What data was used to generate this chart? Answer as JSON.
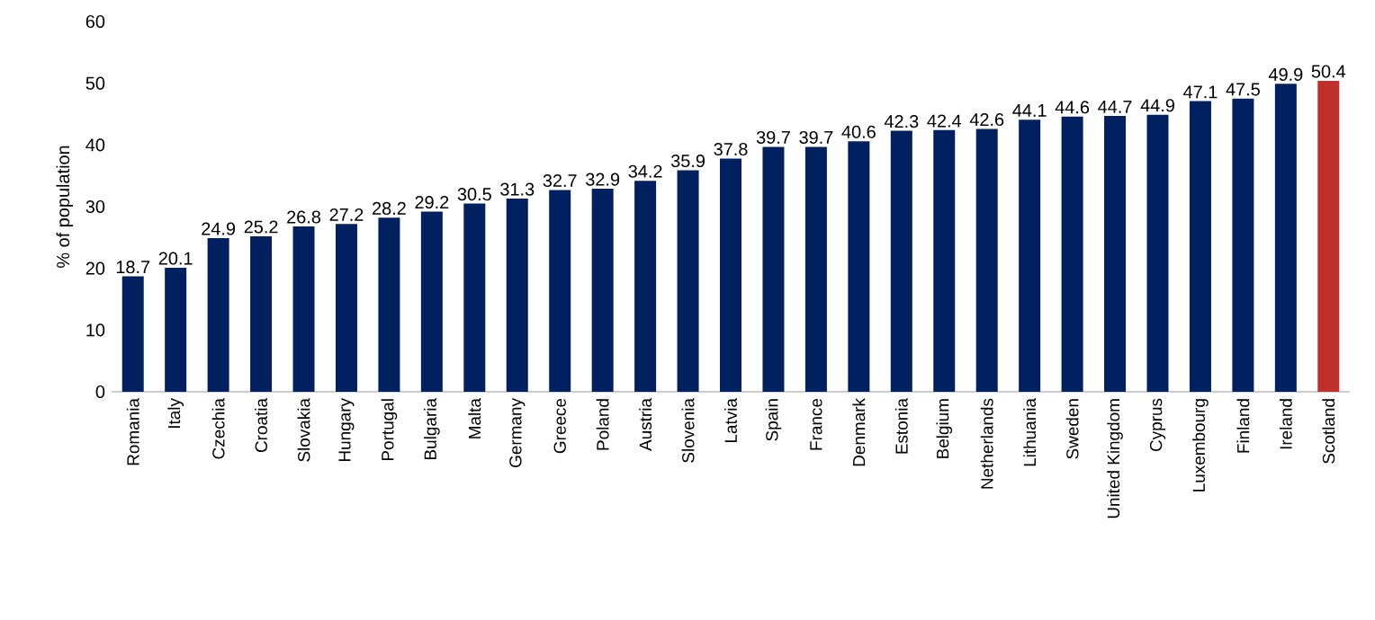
{
  "chart_data": {
    "type": "bar",
    "ylabel": "% of population",
    "categories": [
      "Romania",
      "Italy",
      "Czechia",
      "Croatia",
      "Slovakia",
      "Hungary",
      "Portugal",
      "Bulgaria",
      "Malta",
      "Germany",
      "Greece",
      "Poland",
      "Austria",
      "Slovenia",
      "Latvia",
      "Spain",
      "France",
      "Denmark",
      "Estonia",
      "Belgium",
      "Netherlands",
      "Lithuania",
      "Sweden",
      "United Kingdom",
      "Cyprus",
      "Luxembourg",
      "Finland",
      "Ireland",
      "Scotland"
    ],
    "values": [
      18.7,
      20.1,
      24.9,
      25.2,
      26.8,
      27.2,
      28.2,
      29.2,
      30.5,
      31.3,
      32.7,
      32.9,
      34.2,
      35.9,
      37.8,
      39.7,
      39.7,
      40.6,
      42.3,
      42.4,
      42.6,
      44.1,
      44.6,
      44.7,
      44.9,
      47.1,
      47.5,
      49.9,
      50.4
    ],
    "colors": [
      "#002060",
      "#002060",
      "#002060",
      "#002060",
      "#002060",
      "#002060",
      "#002060",
      "#002060",
      "#002060",
      "#002060",
      "#002060",
      "#002060",
      "#002060",
      "#002060",
      "#002060",
      "#002060",
      "#002060",
      "#002060",
      "#002060",
      "#002060",
      "#002060",
      "#002060",
      "#002060",
      "#002060",
      "#002060",
      "#002060",
      "#002060",
      "#002060",
      "#c0302b"
    ],
    "ylim": [
      0,
      60
    ],
    "yticks": [
      0,
      10,
      20,
      30,
      40,
      50,
      60
    ],
    "grid": false,
    "data_labels": true
  }
}
